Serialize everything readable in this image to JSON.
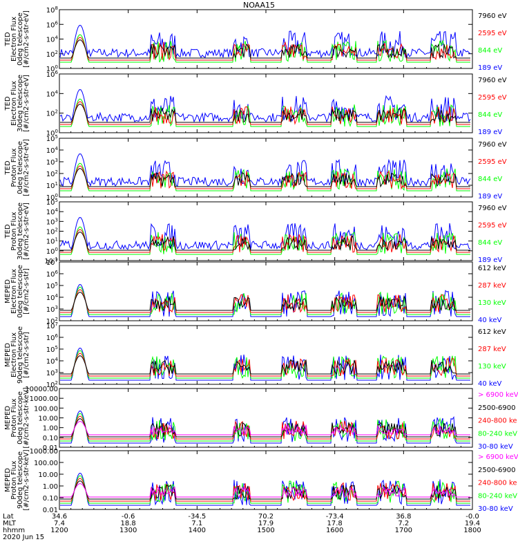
{
  "title": "NOAA15",
  "colors": {
    "blue": "#0000ff",
    "red": "#ff0000",
    "green": "#00ff00",
    "black": "#000000",
    "magenta": "#ff00ff"
  },
  "panels": [
    {
      "ylabel": [
        "TED",
        "Electron Flux",
        "0deg telescope",
        "[#/cm2-s-str-eV]"
      ],
      "ticks": [
        "10^0",
        "10^2",
        "10^4",
        "10^6",
        "10^8"
      ],
      "legend": [
        {
          "text": "7960 eV",
          "color": "black"
        },
        {
          "text": "2595 eV",
          "color": "red"
        },
        {
          "text": "844 eV",
          "color": "green"
        },
        {
          "text": "189 eV",
          "color": "blue"
        }
      ]
    },
    {
      "ylabel": [
        "TED",
        "Electron Flux",
        "30deg telescope",
        "[#/cm2-s-str-eV]"
      ],
      "ticks": [
        "10^0",
        "10^2",
        "10^4",
        "10^6"
      ],
      "legend": [
        {
          "text": "7960 eV",
          "color": "black"
        },
        {
          "text": "2595 eV",
          "color": "red"
        },
        {
          "text": "844 eV",
          "color": "green"
        },
        {
          "text": "189 eV",
          "color": "blue"
        }
      ]
    },
    {
      "ylabel": [
        "TED",
        "Proton Flux",
        "0deg telescope",
        "[#/cm2-s-str-eV]"
      ],
      "ticks": [
        "10^0",
        "10^1",
        "10^2",
        "10^3",
        "10^4",
        "10^5"
      ],
      "legend": [
        {
          "text": "7960 eV",
          "color": "black"
        },
        {
          "text": "2595 eV",
          "color": "red"
        },
        {
          "text": "844 eV",
          "color": "green"
        },
        {
          "text": "189 eV",
          "color": "blue"
        }
      ]
    },
    {
      "ylabel": [
        "TED",
        "Proton Flux",
        "30deg telescope",
        "[#/cm2-s-str-eV]"
      ],
      "ticks": [
        "10^-1",
        "10^0",
        "10^1",
        "10^2",
        "10^3",
        "10^4",
        "10^5"
      ],
      "legend": [
        {
          "text": "7960 eV",
          "color": "black"
        },
        {
          "text": "2595 eV",
          "color": "red"
        },
        {
          "text": "844 eV",
          "color": "green"
        },
        {
          "text": "189 eV",
          "color": "blue"
        }
      ]
    },
    {
      "ylabel": [
        "MEPED",
        "Electron Flux",
        "0deg telescope",
        "[#/cm2-s-str]"
      ],
      "ticks": [
        "10^2",
        "10^3",
        "10^4",
        "10^5",
        "10^6",
        "10^7"
      ],
      "legend": [
        {
          "text": "612 keV",
          "color": "black"
        },
        {
          "text": "287 keV",
          "color": "red"
        },
        {
          "text": "130 keV",
          "color": "green"
        },
        {
          "text": "40 keV",
          "color": "blue"
        }
      ]
    },
    {
      "ylabel": [
        "MEPED",
        "Electron Flux",
        "90deg telescope",
        "[#/cm2-s-str]"
      ],
      "ticks": [
        "10^2",
        "10^3",
        "10^4",
        "10^5",
        "10^6",
        "10^7"
      ],
      "legend": [
        {
          "text": "612 keV",
          "color": "black"
        },
        {
          "text": "287 keV",
          "color": "red"
        },
        {
          "text": "130 keV",
          "color": "green"
        },
        {
          "text": "40 keV",
          "color": "blue"
        }
      ]
    },
    {
      "ylabel": [
        "MEPED",
        "Proton Flux",
        "0deg telescope",
        "[#/cm2-s-str-keV]"
      ],
      "ticks": [
        "0.01",
        "0.10",
        "1.00",
        "10.00",
        "100.00",
        "1000.00",
        "10000.00"
      ],
      "legend": [
        {
          "text": "> 6900 keV",
          "color": "magenta"
        },
        {
          "text": "2500-6900",
          "color": "black"
        },
        {
          "text": "240-800 ke",
          "color": "red"
        },
        {
          "text": "80-240 keV",
          "color": "green"
        },
        {
          "text": "30-80 keV",
          "color": "blue"
        }
      ]
    },
    {
      "ylabel": [
        "MEPED",
        "Proton Flux",
        "90deg telescope",
        "[#/cm2-s-str-keV]"
      ],
      "ticks": [
        "0.01",
        "0.10",
        "1.00",
        "10.00",
        "100.00",
        "1000.00"
      ],
      "legend": [
        {
          "text": "> 6900 keV",
          "color": "magenta"
        },
        {
          "text": "2500-6900",
          "color": "black"
        },
        {
          "text": "240-800 ke",
          "color": "red"
        },
        {
          "text": "80-240 keV",
          "color": "green"
        },
        {
          "text": "30-80 keV",
          "color": "blue"
        }
      ]
    }
  ],
  "xaxis": {
    "row_labels": [
      "Lat",
      "MLT",
      "hhmm",
      "2020 Jun 15"
    ],
    "columns": [
      {
        "lat": "34.6",
        "mlt": "7.4",
        "hhmm": "1200"
      },
      {
        "lat": "-0.6",
        "mlt": "18.8",
        "hhmm": "1300"
      },
      {
        "lat": "-34.5",
        "mlt": "7.1",
        "hhmm": "1400"
      },
      {
        "lat": "70.2",
        "mlt": "17.9",
        "hhmm": "1500"
      },
      {
        "lat": "-73.4",
        "mlt": "17.8",
        "hhmm": "1600"
      },
      {
        "lat": "36.8",
        "mlt": "7.2",
        "hhmm": "1700"
      },
      {
        "lat": "-0.0",
        "mlt": "19.4",
        "hhmm": "1800"
      }
    ]
  },
  "chart_data": {
    "type": "line",
    "title": "NOAA15",
    "x_range": [
      "1200",
      "1800"
    ],
    "x_ticks": [
      "1200",
      "1300",
      "1400",
      "1500",
      "1600",
      "1700",
      "1800"
    ],
    "grid": false,
    "legend_placement": "right of each panel",
    "panels": [
      {
        "name": "TED Electron Flux 0deg telescope",
        "yscale": "log",
        "ylim": [
          "10^0",
          "10^8"
        ],
        "series": [
          {
            "name": "7960 eV",
            "color": "#000000"
          },
          {
            "name": "2595 eV",
            "color": "#ff0000"
          },
          {
            "name": "844 eV",
            "color": "#00ff00"
          },
          {
            "name": "189 eV",
            "color": "#0000ff"
          }
        ]
      },
      {
        "name": "TED Electron Flux 30deg telescope",
        "yscale": "log",
        "ylim": [
          "10^0",
          "10^6"
        ],
        "series": [
          {
            "name": "7960 eV"
          },
          {
            "name": "2595 eV"
          },
          {
            "name": "844 eV"
          },
          {
            "name": "189 eV"
          }
        ]
      },
      {
        "name": "TED Proton Flux 0deg telescope",
        "yscale": "log",
        "ylim": [
          "10^0",
          "10^5"
        ],
        "series": [
          {
            "name": "7960 eV"
          },
          {
            "name": "2595 eV"
          },
          {
            "name": "844 eV"
          },
          {
            "name": "189 eV"
          }
        ]
      },
      {
        "name": "TED Proton Flux 30deg telescope",
        "yscale": "log",
        "ylim": [
          "10^-1",
          "10^5"
        ],
        "series": [
          {
            "name": "7960 eV"
          },
          {
            "name": "2595 eV"
          },
          {
            "name": "844 eV"
          },
          {
            "name": "189 eV"
          }
        ]
      },
      {
        "name": "MEPED Electron Flux 0deg telescope",
        "yscale": "log",
        "ylim": [
          "10^2",
          "10^7"
        ],
        "series": [
          {
            "name": "612 keV"
          },
          {
            "name": "287 keV"
          },
          {
            "name": "130 keV"
          },
          {
            "name": "40 keV"
          }
        ]
      },
      {
        "name": "MEPED Electron Flux 90deg telescope",
        "yscale": "log",
        "ylim": [
          "10^2",
          "10^7"
        ],
        "series": [
          {
            "name": "612 keV"
          },
          {
            "name": "287 keV"
          },
          {
            "name": "130 keV"
          },
          {
            "name": "40 keV"
          }
        ]
      },
      {
        "name": "MEPED Proton Flux 0deg telescope",
        "yscale": "log",
        "ylim": [
          0.01,
          10000
        ],
        "series": [
          {
            "name": "> 6900 keV"
          },
          {
            "name": "2500-6900"
          },
          {
            "name": "240-800 ke"
          },
          {
            "name": "80-240 keV"
          },
          {
            "name": "30-80 keV"
          }
        ]
      },
      {
        "name": "MEPED Proton Flux 90deg telescope",
        "yscale": "log",
        "ylim": [
          0.01,
          1000
        ],
        "series": [
          {
            "name": "> 6900 keV"
          },
          {
            "name": "2500-6900"
          },
          {
            "name": "240-800 ke"
          },
          {
            "name": "80-240 keV"
          },
          {
            "name": "30-80 keV"
          }
        ]
      }
    ]
  }
}
